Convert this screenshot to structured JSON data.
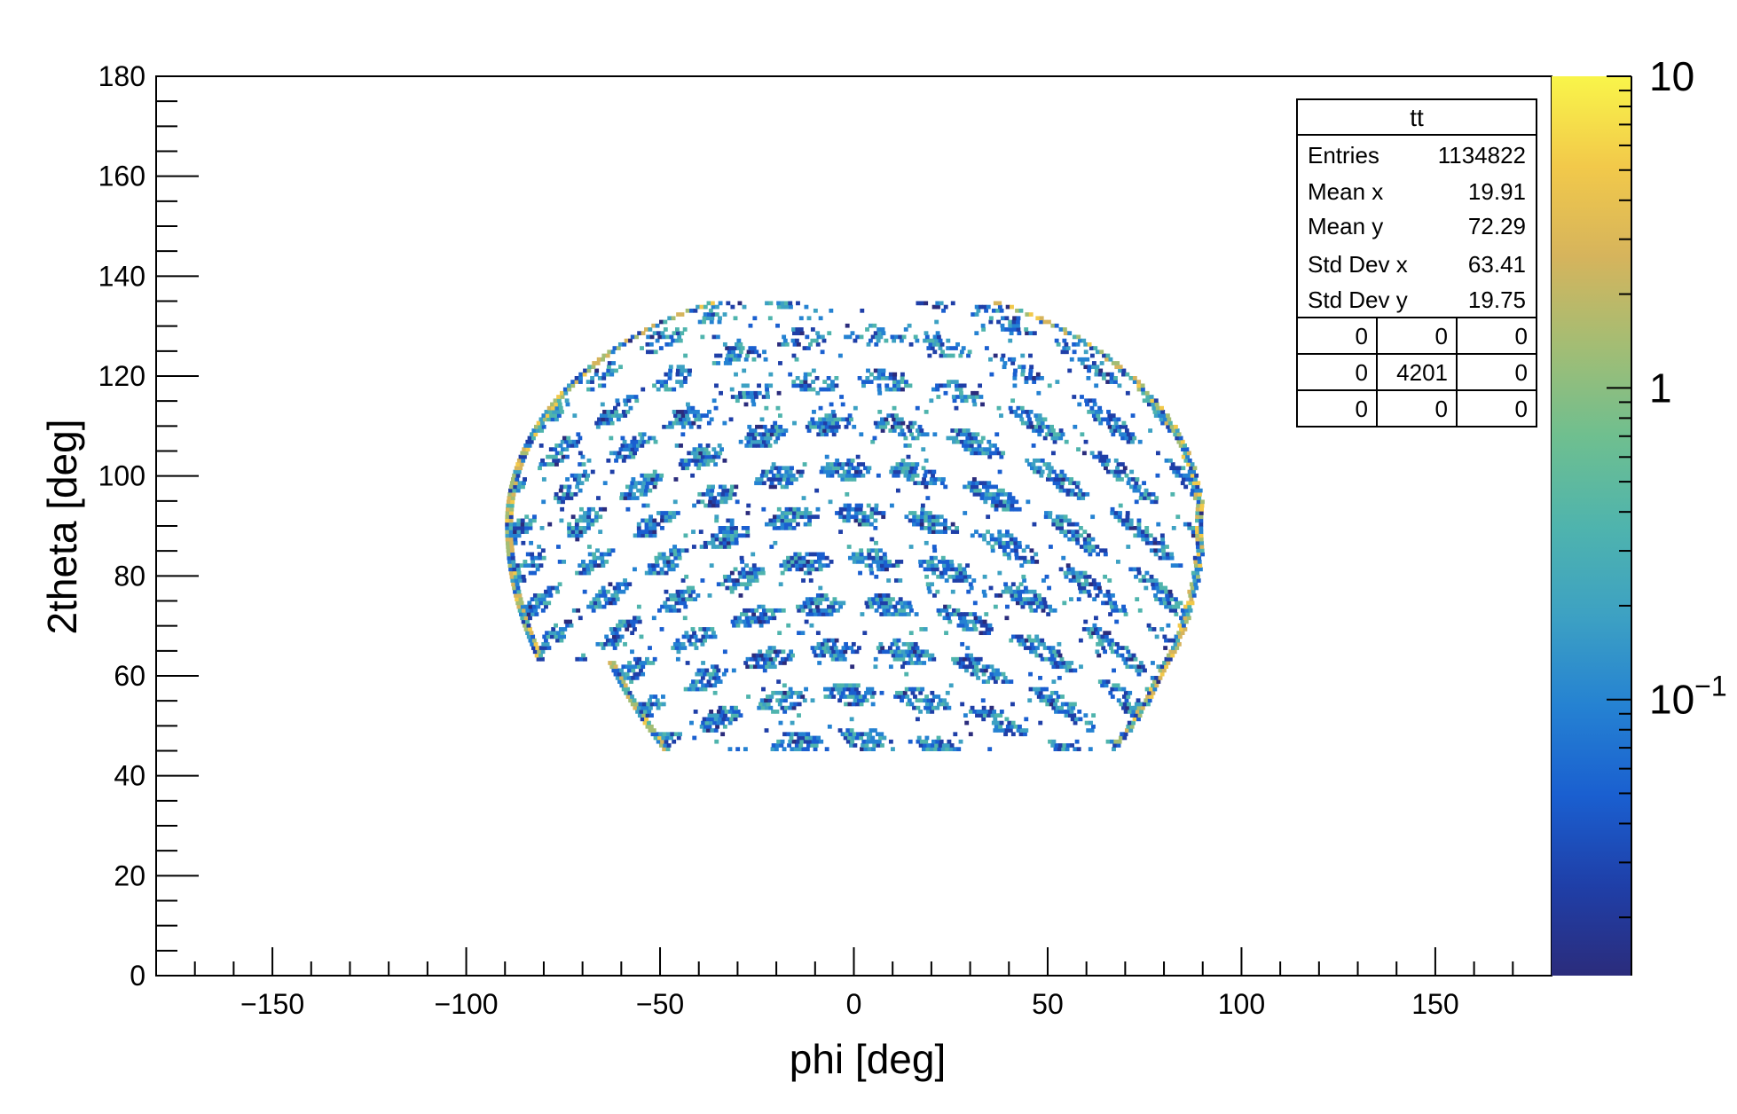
{
  "chart_data": {
    "type": "heatmap",
    "title": "",
    "xlabel": "phi [deg]",
    "ylabel": "2theta [deg]",
    "xlim": [
      -180,
      180
    ],
    "ylim": [
      0,
      180
    ],
    "x_ticks": [
      -150,
      -100,
      -50,
      0,
      50,
      100,
      150
    ],
    "y_ticks": [
      0,
      20,
      40,
      60,
      80,
      100,
      120,
      140,
      160,
      180
    ],
    "x_tick_labels": [
      "−150",
      "−100",
      "−50",
      "0",
      "50",
      "100",
      "150"
    ],
    "y_tick_labels": [
      "0",
      "20",
      "40",
      "60",
      "80",
      "100",
      "120",
      "140",
      "160",
      "180"
    ],
    "z_scale": "log",
    "colorbar": {
      "zlim": [
        0.013,
        10
      ],
      "major_ticks": [
        {
          "value": 10,
          "base": "10",
          "exp": ""
        },
        {
          "value": 1,
          "base": "1",
          "exp": ""
        },
        {
          "value": 0.1,
          "base": "10",
          "exp": "−1"
        }
      ],
      "palette": [
        "#2b2c7c",
        "#1f3fa8",
        "#1a5fd0",
        "#2582d2",
        "#3da1c3",
        "#4fb4ad",
        "#6fbf8f",
        "#a3bd74",
        "#d6b45c",
        "#f2c94a",
        "#f9f54a"
      ]
    },
    "data_region": {
      "phi_range": [
        -90,
        90
      ],
      "twotheta_range": [
        45,
        135
      ],
      "description_values": "sparse bins with log-scale counts, mostly between 0.02 and 0.5, a few up to ~5"
    },
    "stats_box": {
      "title": "tt",
      "rows": [
        {
          "label": "Entries",
          "value": "1134822"
        },
        {
          "label": "Mean x",
          "value": "19.91"
        },
        {
          "label": "Mean y",
          "value": "72.29"
        },
        {
          "label": "Std Dev x",
          "value": "63.41"
        },
        {
          "label": "Std Dev y",
          "value": "19.75"
        }
      ],
      "overflow_grid": [
        [
          "0",
          "0",
          "0"
        ],
        [
          "0",
          "4201",
          "0"
        ],
        [
          "0",
          "0",
          "0"
        ]
      ]
    },
    "grid": false,
    "legend": "top-right"
  }
}
